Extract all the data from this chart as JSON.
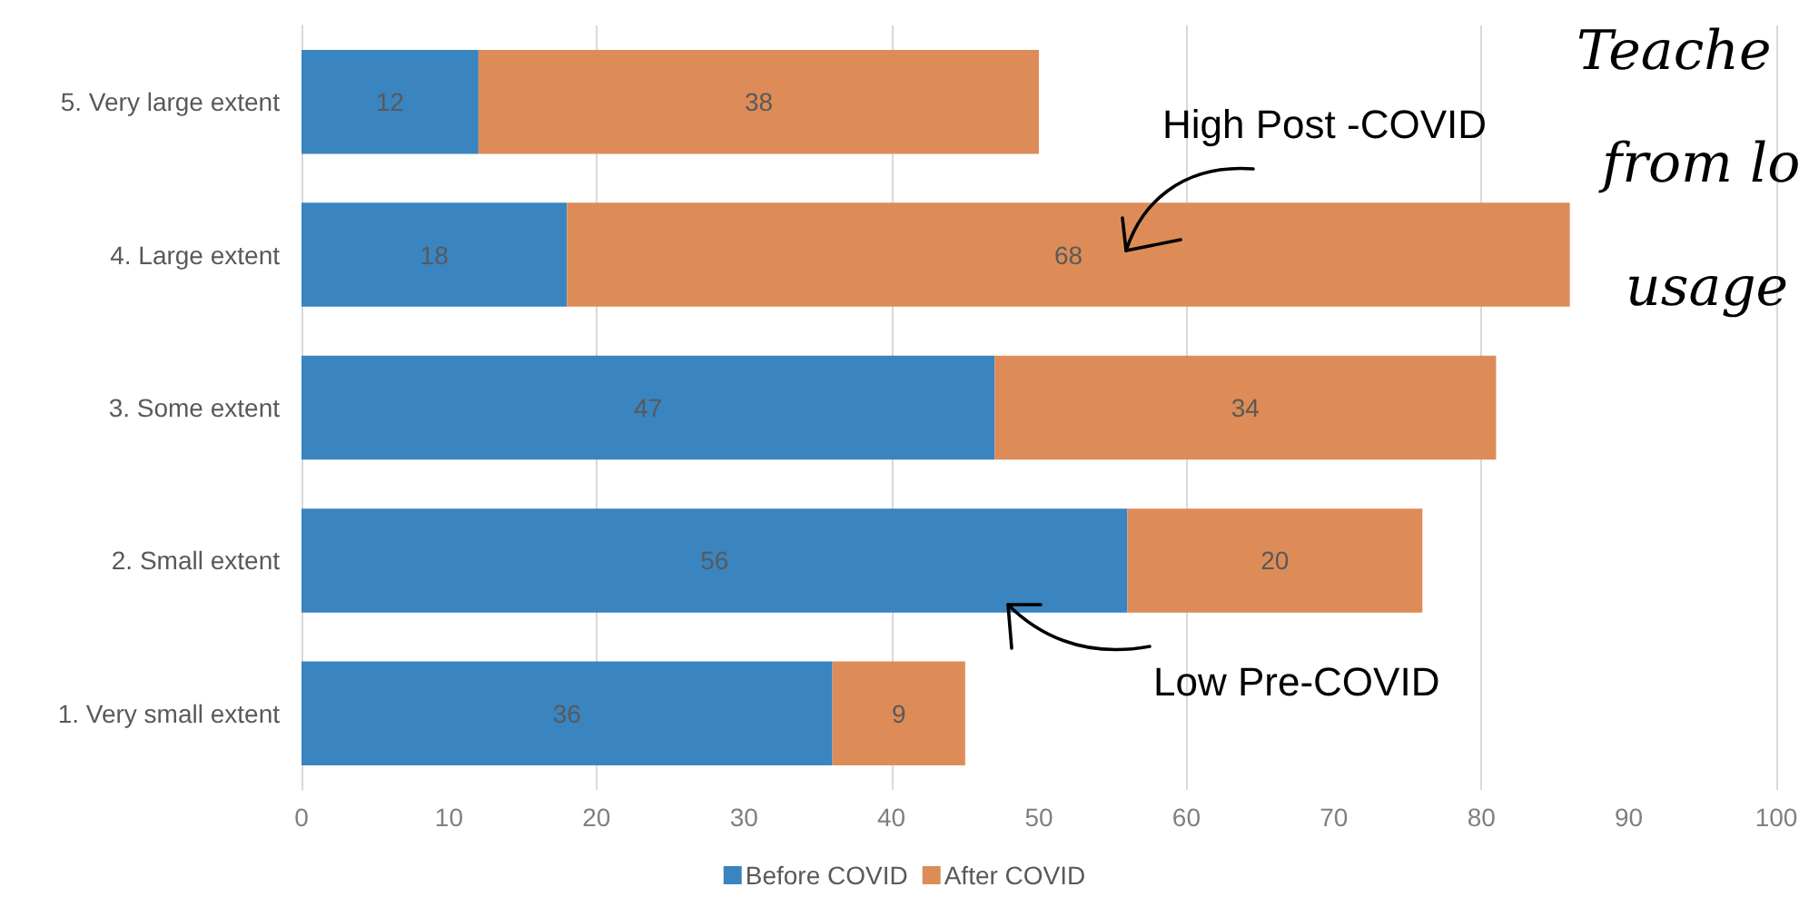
{
  "chart_data": {
    "type": "bar",
    "orientation": "horizontal",
    "stacked": true,
    "categories": [
      "5. Very large extent",
      "4. Large extent",
      "3. Some extent",
      "2. Small extent",
      "1. Very small extent"
    ],
    "series": [
      {
        "name": "Before COVID",
        "color": "#3a84c0",
        "values": [
          12,
          18,
          47,
          56,
          36
        ]
      },
      {
        "name": "After COVID",
        "color": "#dd8c58",
        "values": [
          38,
          68,
          34,
          20,
          9
        ]
      }
    ],
    "xlim": [
      0,
      100
    ],
    "xticks": [
      0,
      10,
      20,
      30,
      40,
      50,
      60,
      70,
      80,
      90,
      100
    ],
    "grid": "x",
    "legend": "bottom",
    "data_labels": true,
    "annotations": [
      "High Post -COVID",
      "Low Pre-COVID",
      "Teache",
      "from lo",
      "usage"
    ]
  }
}
